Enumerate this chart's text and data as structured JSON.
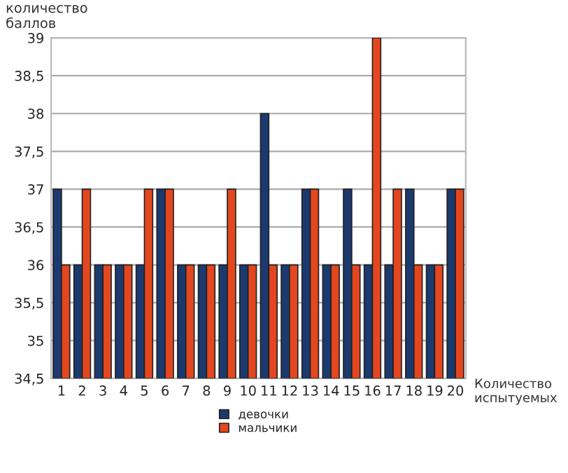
{
  "chart_data": {
    "type": "bar",
    "ylabel": "количество\nбаллов",
    "xlabel": "Количество\nиспытуемых",
    "categories": [
      "1",
      "2",
      "3",
      "4",
      "5",
      "6",
      "7",
      "8",
      "9",
      "10",
      "11",
      "12",
      "13",
      "14",
      "15",
      "16",
      "17",
      "18",
      "19",
      "20"
    ],
    "series": [
      {
        "name": "девочки",
        "color": "#1c3a6e",
        "values": [
          37,
          36,
          36,
          36,
          36,
          37,
          36,
          36,
          36,
          36,
          38,
          36,
          37,
          36,
          37,
          36,
          36,
          37,
          36,
          37
        ]
      },
      {
        "name": "мальчики",
        "color": "#e4471f",
        "values": [
          36,
          37,
          36,
          36,
          37,
          37,
          36,
          36,
          37,
          36,
          36,
          36,
          37,
          36,
          36,
          39,
          37,
          36,
          36,
          37
        ]
      }
    ],
    "ylim": [
      34.5,
      39
    ],
    "yticks": [
      {
        "value": 34.5,
        "label": "34,5"
      },
      35,
      {
        "value": 35.5,
        "label": "35,5"
      },
      36,
      {
        "value": 36.5,
        "label": "36,5"
      },
      37,
      {
        "value": 37.5,
        "label": "37,5"
      },
      38,
      {
        "value": 38.5,
        "label": "38,5"
      },
      39
    ],
    "grid": "y",
    "legend": "bottom"
  }
}
